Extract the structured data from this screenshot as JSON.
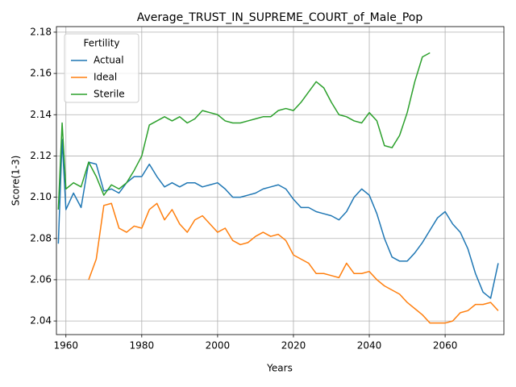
{
  "chart_data": {
    "type": "line",
    "title": "Average_TRUST_IN_SUPREME_COURT_of_Male_Pop",
    "xlabel": "Years",
    "ylabel": "Score(1-3)",
    "legend_title": "Fertility",
    "legend": "upper left",
    "grid": true,
    "x": [
      1958,
      1959,
      1960,
      1962,
      1964,
      1966,
      1968,
      1970,
      1972,
      1974,
      1976,
      1978,
      1980,
      1982,
      1984,
      1986,
      1988,
      1990,
      1992,
      1994,
      1996,
      1998,
      2000,
      2002,
      2004,
      2006,
      2008,
      2010,
      2012,
      2014,
      2016,
      2018,
      2020,
      2022,
      2024,
      2026,
      2028,
      2030,
      2032,
      2034,
      2036,
      2038,
      2040,
      2042,
      2044,
      2046,
      2048,
      2050,
      2052,
      2054,
      2056,
      2058,
      2060,
      2062,
      2064,
      2066,
      2068,
      2070,
      2072,
      2074
    ],
    "series": [
      {
        "name": "Actual",
        "color": "#1f77b4",
        "values": [
          2.0775,
          2.128,
          2.094,
          2.102,
          2.095,
          2.117,
          2.116,
          2.103,
          2.104,
          2.102,
          2.107,
          2.11,
          2.11,
          2.116,
          2.11,
          2.105,
          2.107,
          2.105,
          2.107,
          2.107,
          2.105,
          2.106,
          2.107,
          2.104,
          2.1,
          2.1,
          2.101,
          2.102,
          2.104,
          2.105,
          2.106,
          2.104,
          2.099,
          2.095,
          2.095,
          2.093,
          2.092,
          2.091,
          2.089,
          2.093,
          2.1,
          2.104,
          2.101,
          2.092,
          2.08,
          2.071,
          2.069,
          2.069,
          2.073,
          2.078,
          2.084,
          2.09,
          2.093,
          2.087,
          2.083,
          2.075,
          2.063,
          2.054,
          2.051,
          2.068
        ]
      },
      {
        "name": "Ideal",
        "color": "#ff7f0e",
        "values": [
          null,
          null,
          null,
          null,
          null,
          2.06,
          2.07,
          2.096,
          2.097,
          2.085,
          2.083,
          2.086,
          2.085,
          2.094,
          2.097,
          2.089,
          2.094,
          2.087,
          2.083,
          2.089,
          2.091,
          2.087,
          2.083,
          2.085,
          2.079,
          2.077,
          2.078,
          2.081,
          2.083,
          2.081,
          2.082,
          2.079,
          2.072,
          2.07,
          2.068,
          2.063,
          2.063,
          2.062,
          2.061,
          2.068,
          2.063,
          2.063,
          2.064,
          2.06,
          2.057,
          2.055,
          2.053,
          2.049,
          2.046,
          2.043,
          2.039,
          2.039,
          2.039,
          2.04,
          2.044,
          2.045,
          2.048,
          2.048,
          2.049,
          2.045
        ]
      },
      {
        "name": "Sterile",
        "color": "#2ca02c",
        "values": [
          2.094,
          2.136,
          2.104,
          2.107,
          2.105,
          2.117,
          2.11,
          2.101,
          2.106,
          2.104,
          2.107,
          2.113,
          2.12,
          2.135,
          2.137,
          2.139,
          2.137,
          2.139,
          2.136,
          2.138,
          2.142,
          2.141,
          2.14,
          2.137,
          2.136,
          2.136,
          2.137,
          2.138,
          2.139,
          2.139,
          2.142,
          2.143,
          2.142,
          2.146,
          2.151,
          2.156,
          2.153,
          2.146,
          2.14,
          2.139,
          2.137,
          2.136,
          2.141,
          2.137,
          2.125,
          2.124,
          2.13,
          2.141,
          2.156,
          2.168,
          2.17,
          null,
          null,
          null,
          null,
          null,
          null,
          null,
          null,
          null
        ]
      }
    ],
    "xlim": [
      1957.5,
      2075.5
    ],
    "xticks": [
      1960,
      1980,
      2000,
      2020,
      2040,
      2060
    ],
    "ylim": [
      2.0334,
      2.1827
    ],
    "yticks": [
      2.04,
      2.06,
      2.08,
      {
        "value": 2.1,
        "label": "2.10"
      },
      2.12,
      2.14,
      2.16,
      2.18
    ]
  }
}
